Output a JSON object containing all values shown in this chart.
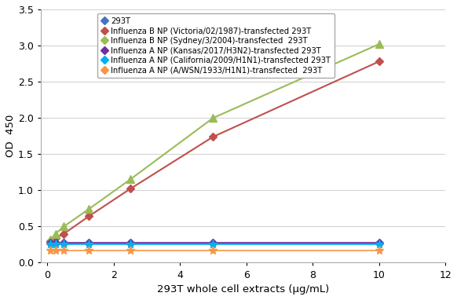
{
  "title": "",
  "xlabel": "293T whole cell extracts (μg/mL)",
  "ylabel": "OD  450",
  "xlim": [
    -0.2,
    12
  ],
  "ylim": [
    0,
    3.5
  ],
  "xticks": [
    0,
    2,
    4,
    6,
    8,
    10,
    12
  ],
  "yticks": [
    0,
    0.5,
    1.0,
    1.5,
    2.0,
    2.5,
    3.0,
    3.5
  ],
  "series": [
    {
      "label": "293T",
      "x": [
        0.1,
        0.25,
        0.5,
        1.25,
        2.5,
        5.0,
        10.0
      ],
      "y": [
        0.27,
        0.27,
        0.27,
        0.27,
        0.27,
        0.27,
        0.27
      ],
      "color": "#4472C4",
      "marker": "D",
      "markersize": 5,
      "linewidth": 1.2
    },
    {
      "label": "Influenza B NP (Victoria/02/1987)-transfected 293T",
      "x": [
        0.1,
        0.25,
        0.5,
        1.25,
        2.5,
        5.0,
        10.0
      ],
      "y": [
        0.3,
        0.34,
        0.4,
        0.64,
        1.02,
        1.74,
        2.78
      ],
      "color": "#C0504D",
      "marker": "D",
      "markersize": 5,
      "linewidth": 1.5
    },
    {
      "label": "Influenza B NP (Sydney/3/2004)-transfected  293T",
      "x": [
        0.1,
        0.25,
        0.5,
        1.25,
        2.5,
        5.0,
        10.0
      ],
      "y": [
        0.32,
        0.4,
        0.5,
        0.74,
        1.15,
        2.0,
        3.02
      ],
      "color": "#9BBB59",
      "marker": "^",
      "markersize": 7,
      "linewidth": 1.5
    },
    {
      "label": "Influenza A NP (Kansas/2017/H3N2)-transfected 293T",
      "x": [
        0.1,
        0.25,
        0.5,
        1.25,
        2.5,
        5.0,
        10.0
      ],
      "y": [
        0.28,
        0.28,
        0.28,
        0.28,
        0.28,
        0.28,
        0.28
      ],
      "color": "#7030A0",
      "marker": "D",
      "markersize": 5,
      "linewidth": 1.2
    },
    {
      "label": "Influenza A NP (California/2009/H1N1)-transfected 293T",
      "x": [
        0.1,
        0.25,
        0.5,
        1.25,
        2.5,
        5.0,
        10.0
      ],
      "y": [
        0.25,
        0.25,
        0.25,
        0.25,
        0.25,
        0.25,
        0.25
      ],
      "color": "#00B0F0",
      "marker": "*",
      "markersize": 8,
      "linewidth": 1.2
    },
    {
      "label": "Influenza A NP (A/WSN/1933/H1N1)-transfected  293T",
      "x": [
        0.1,
        0.25,
        0.5,
        1.25,
        2.5,
        5.0,
        10.0
      ],
      "y": [
        0.17,
        0.17,
        0.17,
        0.17,
        0.17,
        0.17,
        0.17
      ],
      "color": "#F79646",
      "marker": "*",
      "markersize": 8,
      "linewidth": 1.2
    }
  ],
  "legend_fontsize": 7.2,
  "axis_label_fontsize": 9.5,
  "tick_fontsize": 9,
  "background_color": "#FFFFFF",
  "grid_color": "#D3D3D3"
}
